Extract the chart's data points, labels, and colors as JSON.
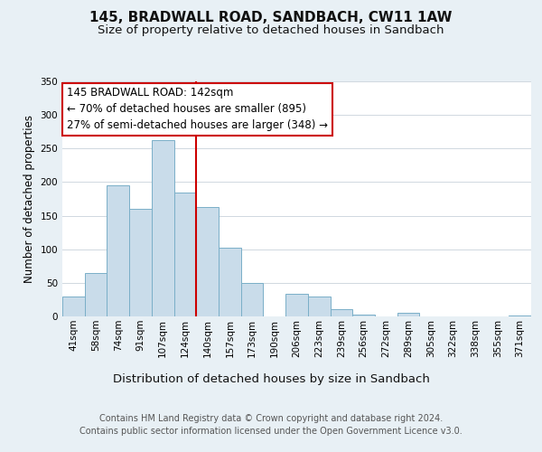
{
  "title": "145, BRADWALL ROAD, SANDBACH, CW11 1AW",
  "subtitle": "Size of property relative to detached houses in Sandbach",
  "xlabel": "Distribution of detached houses by size in Sandbach",
  "ylabel": "Number of detached properties",
  "bin_labels": [
    "41sqm",
    "58sqm",
    "74sqm",
    "91sqm",
    "107sqm",
    "124sqm",
    "140sqm",
    "157sqm",
    "173sqm",
    "190sqm",
    "206sqm",
    "223sqm",
    "239sqm",
    "256sqm",
    "272sqm",
    "289sqm",
    "305sqm",
    "322sqm",
    "338sqm",
    "355sqm",
    "371sqm"
  ],
  "bar_heights": [
    30,
    65,
    195,
    160,
    262,
    185,
    163,
    102,
    50,
    0,
    33,
    29,
    11,
    3,
    0,
    5,
    0,
    0,
    0,
    0,
    2
  ],
  "bar_color": "#c9dcea",
  "bar_edge_color": "#7aafc8",
  "property_line_color": "#cc0000",
  "prop_line_idx": 5.5,
  "annotation_text": "145 BRADWALL ROAD: 142sqm\n← 70% of detached houses are smaller (895)\n27% of semi-detached houses are larger (348) →",
  "annotation_box_facecolor": "#ffffff",
  "annotation_box_edgecolor": "#cc0000",
  "ylim": [
    0,
    350
  ],
  "yticks": [
    0,
    50,
    100,
    150,
    200,
    250,
    300,
    350
  ],
  "background_color": "#e8f0f5",
  "plot_background_color": "#ffffff",
  "grid_color": "#d0d8e0",
  "footer_line1": "Contains HM Land Registry data © Crown copyright and database right 2024.",
  "footer_line2": "Contains public sector information licensed under the Open Government Licence v3.0.",
  "title_fontsize": 11,
  "subtitle_fontsize": 9.5,
  "xlabel_fontsize": 9.5,
  "ylabel_fontsize": 8.5,
  "tick_fontsize": 7.5,
  "annotation_fontsize": 8.5,
  "footer_fontsize": 7
}
